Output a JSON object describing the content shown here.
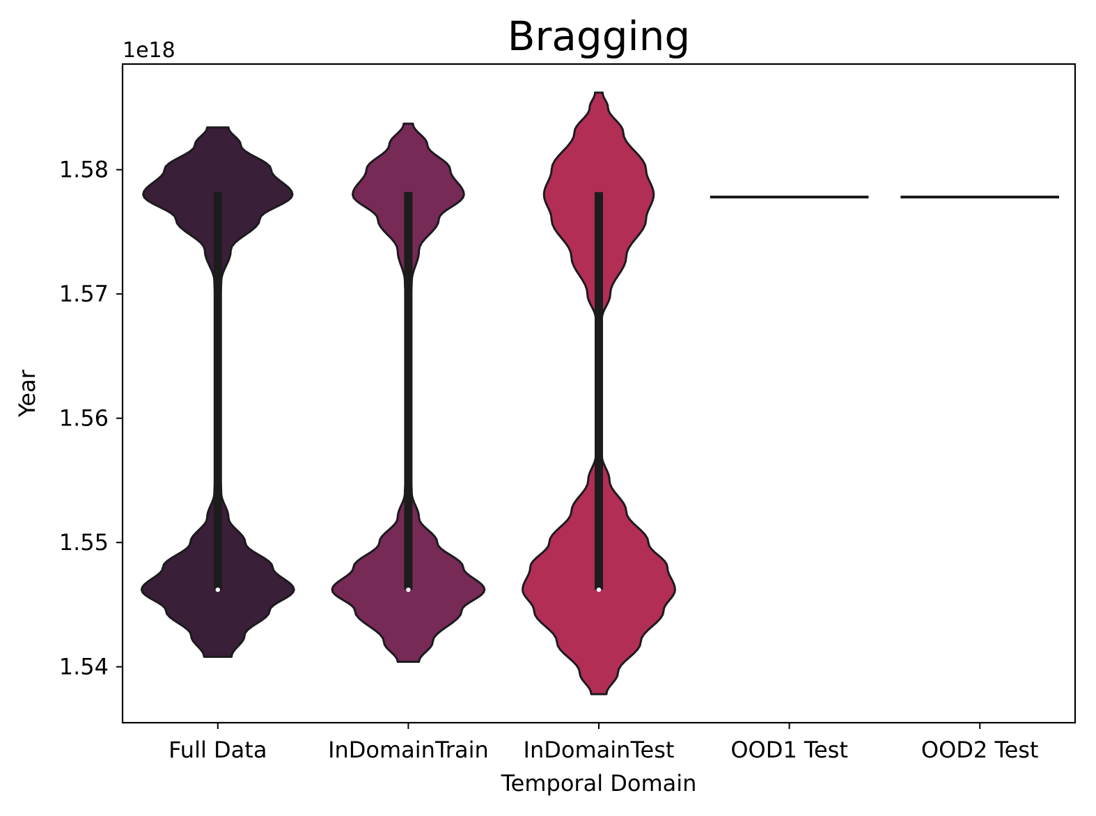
{
  "chart_data": {
    "type": "violin",
    "title": "Bragging",
    "xlabel": "Temporal Domain",
    "ylabel": "Year",
    "y_offset_label": "1e18",
    "y_scale": 1e+18,
    "ylim": [
      1.5355,
      1.5885
    ],
    "yticks": [
      1.54,
      1.55,
      1.56,
      1.57,
      1.58
    ],
    "ytick_labels": [
      "1.54",
      "1.55",
      "1.56",
      "1.57",
      "1.58"
    ],
    "grid": false,
    "categories": [
      "Full Data",
      "InDomainTrain",
      "InDomainTest",
      "OOD1 Test",
      "OOD2 Test"
    ],
    "colors": [
      "#3a1f38",
      "#772a56",
      "#b32e55",
      "#000000",
      "#000000"
    ],
    "outline_color": "#1c1a1f",
    "series": [
      {
        "name": "Full Data",
        "min": 1.5408,
        "max": 1.5834,
        "q1": 1.5462,
        "median": 1.5462,
        "q3": 1.5782,
        "whisker_low": 1.5462,
        "whisker_high": 1.5782,
        "density": [
          [
            1.5408,
            0.18
          ],
          [
            1.5425,
            0.35
          ],
          [
            1.5445,
            0.68
          ],
          [
            1.5462,
            1.0
          ],
          [
            1.548,
            0.72
          ],
          [
            1.55,
            0.36
          ],
          [
            1.552,
            0.14
          ],
          [
            1.554,
            0.045
          ],
          [
            1.556,
            0.025
          ],
          [
            1.56,
            0.025
          ],
          [
            1.565,
            0.025
          ],
          [
            1.569,
            0.025
          ],
          [
            1.571,
            0.045
          ],
          [
            1.5735,
            0.17
          ],
          [
            1.576,
            0.55
          ],
          [
            1.578,
            0.98
          ],
          [
            1.58,
            0.7
          ],
          [
            1.582,
            0.3
          ],
          [
            1.5834,
            0.14
          ]
        ]
      },
      {
        "name": "InDomainTrain",
        "min": 1.5404,
        "max": 1.5837,
        "q1": 1.5462,
        "median": 1.5462,
        "q3": 1.5782,
        "whisker_low": 1.5462,
        "whisker_high": 1.5782,
        "density": [
          [
            1.5404,
            0.14
          ],
          [
            1.542,
            0.32
          ],
          [
            1.5445,
            0.7
          ],
          [
            1.5462,
            1.0
          ],
          [
            1.548,
            0.72
          ],
          [
            1.55,
            0.38
          ],
          [
            1.552,
            0.14
          ],
          [
            1.554,
            0.045
          ],
          [
            1.556,
            0.025
          ],
          [
            1.56,
            0.025
          ],
          [
            1.565,
            0.025
          ],
          [
            1.569,
            0.025
          ],
          [
            1.571,
            0.045
          ],
          [
            1.5735,
            0.14
          ],
          [
            1.576,
            0.4
          ],
          [
            1.578,
            0.73
          ],
          [
            1.58,
            0.55
          ],
          [
            1.582,
            0.25
          ],
          [
            1.5837,
            0.06
          ]
        ]
      },
      {
        "name": "InDomainTest",
        "min": 1.5378,
        "max": 1.5862,
        "q1": 1.5462,
        "median": 1.5462,
        "q3": 1.5782,
        "whisker_low": 1.5462,
        "whisker_high": 1.5782,
        "density": [
          [
            1.5378,
            0.1
          ],
          [
            1.5395,
            0.25
          ],
          [
            1.542,
            0.55
          ],
          [
            1.5445,
            0.85
          ],
          [
            1.5462,
            1.0
          ],
          [
            1.548,
            0.9
          ],
          [
            1.55,
            0.65
          ],
          [
            1.5525,
            0.36
          ],
          [
            1.555,
            0.14
          ],
          [
            1.557,
            0.04
          ],
          [
            1.56,
            0.025
          ],
          [
            1.565,
            0.025
          ],
          [
            1.568,
            0.04
          ],
          [
            1.57,
            0.15
          ],
          [
            1.573,
            0.36
          ],
          [
            1.576,
            0.62
          ],
          [
            1.578,
            0.72
          ],
          [
            1.58,
            0.62
          ],
          [
            1.583,
            0.32
          ],
          [
            1.585,
            0.12
          ],
          [
            1.5862,
            0.05
          ]
        ]
      },
      {
        "name": "OOD1 Test",
        "min": 1.5778,
        "max": 1.5778,
        "median": 1.5778,
        "density": []
      },
      {
        "name": "OOD2 Test",
        "min": 1.5778,
        "max": 1.5778,
        "median": 1.5778,
        "density": []
      }
    ]
  }
}
